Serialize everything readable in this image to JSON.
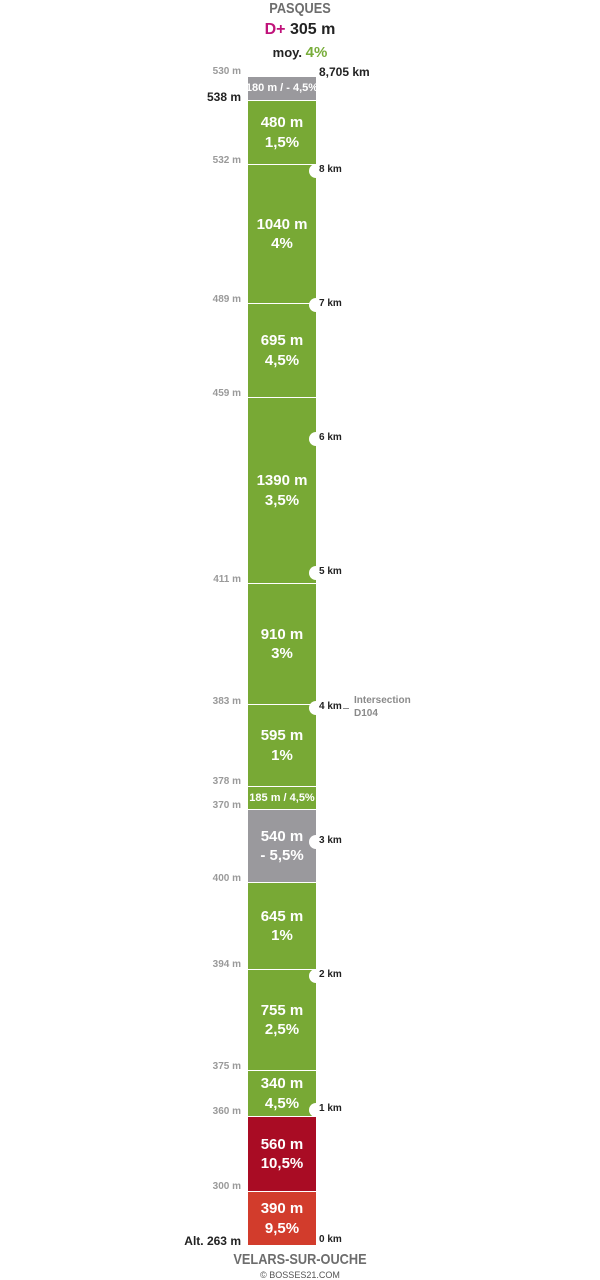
{
  "header": {
    "name": "PASQUES",
    "dplus_label": "D+",
    "dplus_value": "305 m",
    "avg_label": "moy.",
    "avg_value": "4%"
  },
  "footer": {
    "name": "VELARS-SUR-OUCHE",
    "credit": "© BOSSES21.COM"
  },
  "colors": {
    "green": "#78a935",
    "grey": "#9a999d",
    "dark_red": "#a90c24",
    "red": "#d23c2c",
    "climb_accent": "#c0127a",
    "avg_accent": "#78ad3a"
  },
  "segments": [
    {
      "length": "180 m / - 4,5%",
      "grade": "",
      "color": "grey"
    },
    {
      "length": "480 m",
      "grade": "1,5%",
      "color": "green"
    },
    {
      "length": "1040 m",
      "grade": "4%",
      "color": "green"
    },
    {
      "length": "695 m",
      "grade": "4,5%",
      "color": "green"
    },
    {
      "length": "1390 m",
      "grade": "3,5%",
      "color": "green"
    },
    {
      "length": "910 m",
      "grade": "3%",
      "color": "green"
    },
    {
      "length": "595 m",
      "grade": "1%",
      "color": "green"
    },
    {
      "length": "185 m / 4,5%",
      "grade": "",
      "color": "green"
    },
    {
      "length": "540 m",
      "grade": "- 5,5%",
      "color": "grey"
    },
    {
      "length": "645 m",
      "grade": "1%",
      "color": "green"
    },
    {
      "length": "755 m",
      "grade": "2,5%",
      "color": "green"
    },
    {
      "length": "340 m",
      "grade": "4,5%",
      "color": "green"
    },
    {
      "length": "560 m",
      "grade": "10,5%",
      "color": "dark_red"
    },
    {
      "length": "390 m",
      "grade": "9,5%",
      "color": "red"
    }
  ],
  "altitudes": [
    {
      "label": "530 m"
    },
    {
      "label": "538 m"
    },
    {
      "label": "532 m"
    },
    {
      "label": "489 m"
    },
    {
      "label": "459 m"
    },
    {
      "label": "411 m"
    },
    {
      "label": "383 m"
    },
    {
      "label": "378 m"
    },
    {
      "label": "370 m"
    },
    {
      "label": "400 m"
    },
    {
      "label": "394 m"
    },
    {
      "label": "375 m"
    },
    {
      "label": "360 m"
    },
    {
      "label": "300 m"
    },
    {
      "label": "Alt. 263 m"
    }
  ],
  "km_markers": [
    {
      "label": "8,705 km"
    },
    {
      "label": "8 km"
    },
    {
      "label": "7 km"
    },
    {
      "label": "6 km"
    },
    {
      "label": "5 km"
    },
    {
      "label": "4 km"
    },
    {
      "label": "3 km"
    },
    {
      "label": "2 km"
    },
    {
      "label": "1 km"
    },
    {
      "label": "0 km"
    }
  ],
  "annotation": {
    "line1": "Intersection",
    "line2": "D104"
  }
}
